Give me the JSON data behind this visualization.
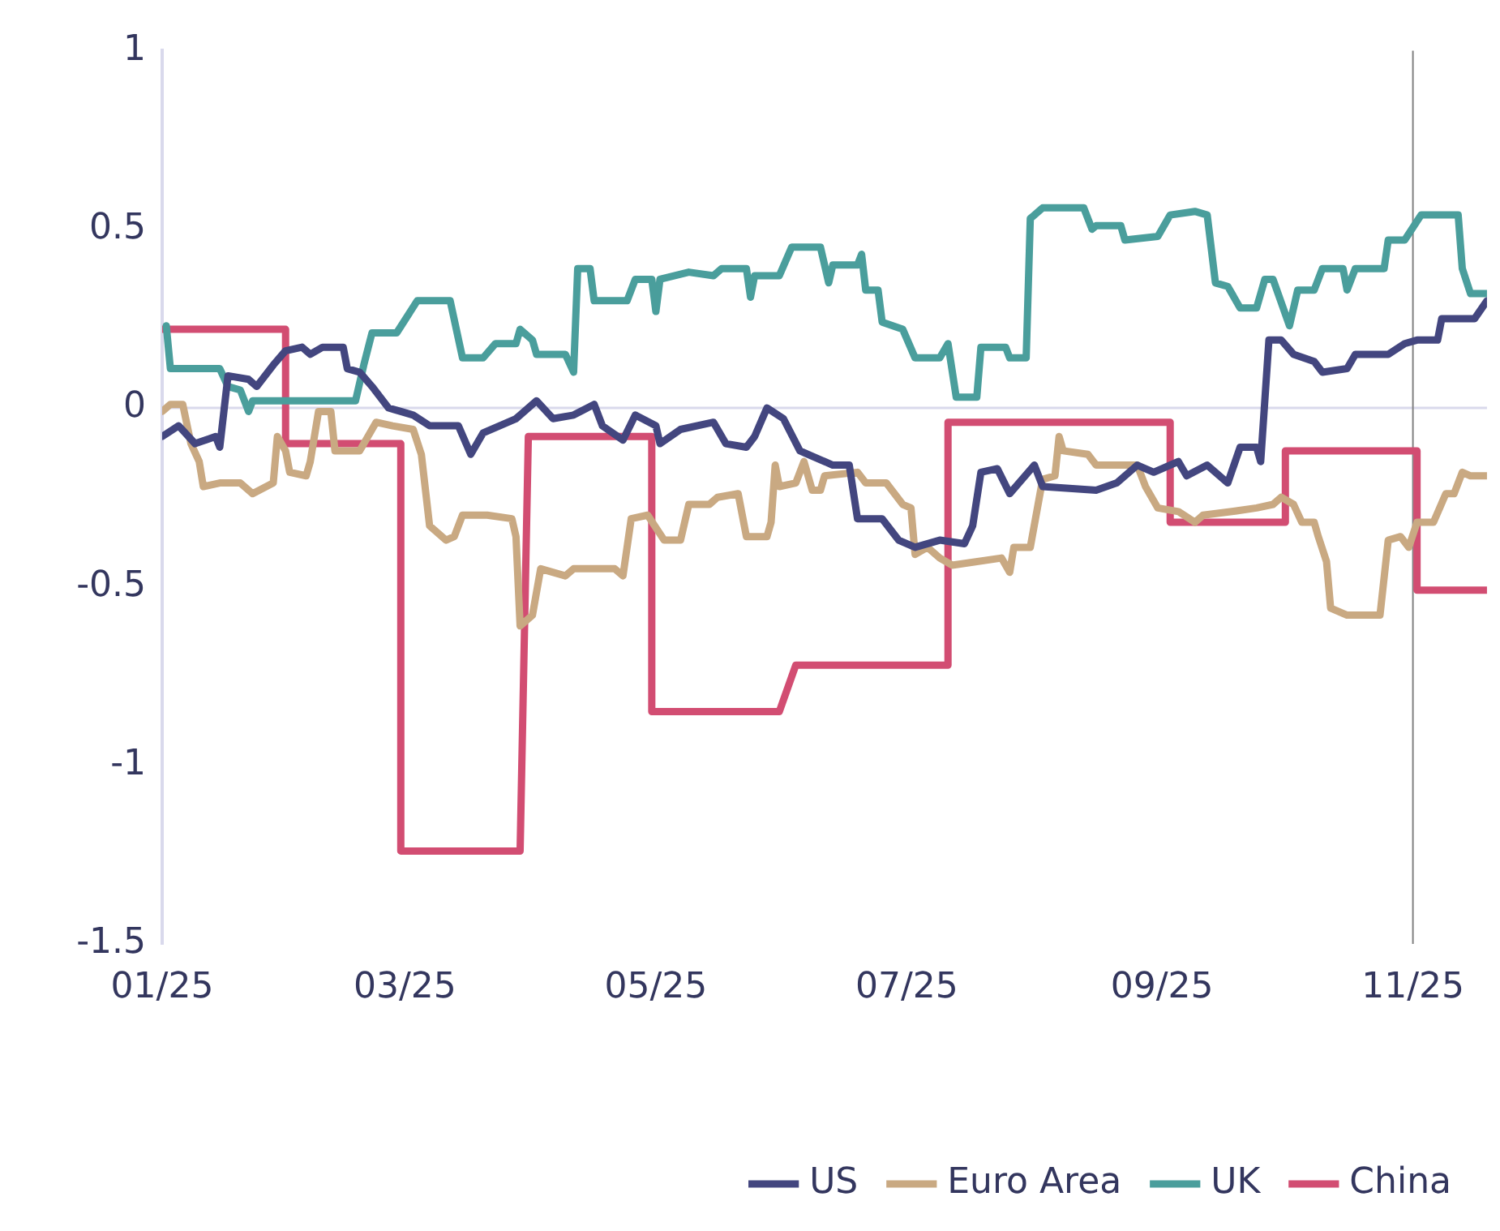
{
  "chart_data": {
    "type": "line",
    "xlim": [
      "2025-01-01",
      "2025-11-19"
    ],
    "xticks": [
      {
        "value": "2025-01-01",
        "label": "01/25"
      },
      {
        "value": "2025-03-01",
        "label": "03/25"
      },
      {
        "value": "2025-05-01",
        "label": "05/25"
      },
      {
        "value": "2025-07-01",
        "label": "07/25"
      },
      {
        "value": "2025-09-01",
        "label": "09/25"
      },
      {
        "value": "2025-11-01",
        "label": "11/25"
      }
    ],
    "ylim": [
      -1.5,
      1
    ],
    "yticks": [
      -1.5,
      -1,
      -0.5,
      0,
      0.5,
      1
    ],
    "grid": false,
    "legend": "bottom",
    "marker": "none",
    "line_style": "solid",
    "ref_lines": [
      {
        "axis": "y",
        "value": 0,
        "color": "#d9d9ec"
      },
      {
        "axis": "x",
        "value": "2025-11-01",
        "color": "#808080"
      }
    ],
    "series": [
      {
        "name": "US",
        "color": "#43467f",
        "x": [
          "2025-01-01",
          "2025-01-05",
          "2025-01-09",
          "2025-01-14",
          "2025-01-15",
          "2025-01-17",
          "2025-01-22",
          "2025-01-24",
          "2025-01-28",
          "2025-01-31",
          "2025-02-04",
          "2025-02-06",
          "2025-02-09",
          "2025-02-14",
          "2025-02-15",
          "2025-02-18",
          "2025-02-21",
          "2025-02-25",
          "2025-02-28",
          "2025-03-03",
          "2025-03-07",
          "2025-03-14",
          "2025-03-17",
          "2025-03-20",
          "2025-03-28",
          "2025-04-02",
          "2025-04-06",
          "2025-04-11",
          "2025-04-16",
          "2025-04-18",
          "2025-04-23",
          "2025-04-26",
          "2025-05-01",
          "2025-05-02",
          "2025-05-07",
          "2025-05-15",
          "2025-05-18",
          "2025-05-23",
          "2025-05-25",
          "2025-05-28",
          "2025-06-01",
          "2025-06-05",
          "2025-06-07",
          "2025-06-13",
          "2025-06-17",
          "2025-06-19",
          "2025-06-25",
          "2025-06-29",
          "2025-07-03",
          "2025-07-09",
          "2025-07-15",
          "2025-07-17",
          "2025-07-19",
          "2025-07-23",
          "2025-07-26",
          "2025-08-01",
          "2025-08-03",
          "2025-08-16",
          "2025-08-21",
          "2025-08-26",
          "2025-08-30",
          "2025-09-05",
          "2025-09-07",
          "2025-09-12",
          "2025-09-17",
          "2025-09-20",
          "2025-09-24",
          "2025-09-25",
          "2025-09-27",
          "2025-09-30",
          "2025-10-03",
          "2025-10-08",
          "2025-10-10",
          "2025-10-16",
          "2025-10-18",
          "2025-10-26",
          "2025-10-30",
          "2025-11-02",
          "2025-11-07",
          "2025-11-08",
          "2025-11-16",
          "2025-11-19"
        ],
        "values": [
          -0.08,
          -0.05,
          -0.1,
          -0.08,
          -0.11,
          0.09,
          0.08,
          0.06,
          0.12,
          0.16,
          0.17,
          0.15,
          0.17,
          0.17,
          0.11,
          0.1,
          0.06,
          0,
          -0.01,
          -0.02,
          -0.05,
          -0.05,
          -0.13,
          -0.07,
          -0.03,
          0.02,
          -0.03,
          -0.02,
          0.01,
          -0.05,
          -0.09,
          -0.02,
          -0.05,
          -0.1,
          -0.06,
          -0.04,
          -0.1,
          -0.11,
          -0.08,
          0,
          -0.03,
          -0.12,
          -0.13,
          -0.16,
          -0.16,
          -0.31,
          -0.31,
          -0.37,
          -0.39,
          -0.37,
          -0.38,
          -0.33,
          -0.18,
          -0.17,
          -0.24,
          -0.16,
          -0.22,
          -0.23,
          -0.21,
          -0.16,
          -0.18,
          -0.15,
          -0.19,
          -0.16,
          -0.21,
          -0.11,
          -0.11,
          -0.15,
          0.19,
          0.19,
          0.15,
          0.13,
          0.1,
          0.11,
          0.15,
          0.15,
          0.18,
          0.19,
          0.19,
          0.25,
          0.25,
          0.3
        ]
      },
      {
        "name": "Euro Area",
        "color": "#c9a982",
        "x": [
          "2025-01-01",
          "2025-01-03",
          "2025-01-06",
          "2025-01-08",
          "2025-01-10",
          "2025-01-11",
          "2025-01-15",
          "2025-01-20",
          "2025-01-23",
          "2025-01-28",
          "2025-01-29",
          "2025-01-31",
          "2025-02-01",
          "2025-02-05",
          "2025-02-06",
          "2025-02-08",
          "2025-02-11",
          "2025-02-12",
          "2025-02-18",
          "2025-02-22",
          "2025-02-26",
          "2025-03-03",
          "2025-03-05",
          "2025-03-07",
          "2025-03-11",
          "2025-03-13",
          "2025-03-15",
          "2025-03-21",
          "2025-03-27",
          "2025-03-28",
          "2025-03-29",
          "2025-04-01",
          "2025-04-03",
          "2025-04-09",
          "2025-04-11",
          "2025-04-21",
          "2025-04-23",
          "2025-04-25",
          "2025-04-29",
          "2025-05-03",
          "2025-05-07",
          "2025-05-09",
          "2025-05-14",
          "2025-05-16",
          "2025-05-21",
          "2025-05-23",
          "2025-05-28",
          "2025-05-29",
          "2025-05-30",
          "2025-05-31",
          "2025-06-04",
          "2025-06-06",
          "2025-06-08",
          "2025-06-10",
          "2025-06-11",
          "2025-06-19",
          "2025-06-21",
          "2025-06-26",
          "2025-06-30",
          "2025-07-02",
          "2025-07-03",
          "2025-07-06",
          "2025-07-09",
          "2025-07-12",
          "2025-07-24",
          "2025-07-26",
          "2025-07-27",
          "2025-07-31",
          "2025-08-03",
          "2025-08-06",
          "2025-08-07",
          "2025-08-08",
          "2025-08-14",
          "2025-08-16",
          "2025-08-26",
          "2025-08-28",
          "2025-08-31",
          "2025-09-05",
          "2025-09-09",
          "2025-09-11",
          "2025-09-18",
          "2025-09-24",
          "2025-09-28",
          "2025-09-30",
          "2025-10-03",
          "2025-10-05",
          "2025-10-08",
          "2025-10-09",
          "2025-10-11",
          "2025-10-12",
          "2025-10-16",
          "2025-10-24",
          "2025-10-26",
          "2025-10-29",
          "2025-10-31",
          "2025-11-02",
          "2025-11-06",
          "2025-11-09",
          "2025-11-11",
          "2025-11-13",
          "2025-11-15",
          "2025-11-19"
        ],
        "values": [
          -0.01,
          0.01,
          0.01,
          -0.1,
          -0.15,
          -0.22,
          -0.21,
          -0.21,
          -0.24,
          -0.21,
          -0.08,
          -0.12,
          -0.18,
          -0.19,
          -0.15,
          -0.01,
          -0.01,
          -0.12,
          -0.12,
          -0.04,
          -0.05,
          -0.06,
          -0.13,
          -0.33,
          -0.37,
          -0.36,
          -0.3,
          -0.3,
          -0.31,
          -0.36,
          -0.61,
          -0.58,
          -0.45,
          -0.47,
          -0.45,
          -0.45,
          -0.47,
          -0.31,
          -0.3,
          -0.37,
          -0.37,
          -0.27,
          -0.27,
          -0.25,
          -0.24,
          -0.36,
          -0.36,
          -0.32,
          -0.16,
          -0.22,
          -0.21,
          -0.15,
          -0.23,
          -0.23,
          -0.19,
          -0.18,
          -0.21,
          -0.21,
          -0.27,
          -0.28,
          -0.41,
          -0.39,
          -0.42,
          -0.44,
          -0.42,
          -0.46,
          -0.39,
          -0.39,
          -0.2,
          -0.19,
          -0.08,
          -0.12,
          -0.13,
          -0.16,
          -0.16,
          -0.22,
          -0.28,
          -0.29,
          -0.32,
          -0.3,
          -0.29,
          -0.28,
          -0.27,
          -0.25,
          -0.27,
          -0.32,
          -0.32,
          -0.36,
          -0.43,
          -0.56,
          -0.58,
          -0.58,
          -0.37,
          -0.36,
          -0.39,
          -0.32,
          -0.32,
          -0.24,
          -0.24,
          -0.18,
          -0.19,
          -0.19
        ]
      },
      {
        "name": "UK",
        "color": "#4a9e9c",
        "x": [
          "2025-01-02",
          "2025-01-03",
          "2025-01-15",
          "2025-01-17",
          "2025-01-20",
          "2025-01-22",
          "2025-01-23",
          "2025-02-17",
          "2025-02-19",
          "2025-02-21",
          "2025-02-27",
          "2025-03-04",
          "2025-03-12",
          "2025-03-15",
          "2025-03-20",
          "2025-03-23",
          "2025-03-28",
          "2025-03-29",
          "2025-04-01",
          "2025-04-02",
          "2025-04-09",
          "2025-04-11",
          "2025-04-12",
          "2025-04-15",
          "2025-04-16",
          "2025-04-24",
          "2025-04-26",
          "2025-04-30",
          "2025-05-01",
          "2025-05-02",
          "2025-05-09",
          "2025-05-15",
          "2025-05-17",
          "2025-05-23",
          "2025-05-24",
          "2025-05-25",
          "2025-05-31",
          "2025-06-03",
          "2025-06-10",
          "2025-06-12",
          "2025-06-13",
          "2025-06-19",
          "2025-06-20",
          "2025-06-21",
          "2025-06-24",
          "2025-06-25",
          "2025-06-30",
          "2025-07-03",
          "2025-07-09",
          "2025-07-11",
          "2025-07-13",
          "2025-07-18",
          "2025-07-19",
          "2025-07-25",
          "2025-07-26",
          "2025-07-30",
          "2025-07-31",
          "2025-08-03",
          "2025-08-13",
          "2025-08-15",
          "2025-08-16",
          "2025-08-22",
          "2025-08-23",
          "2025-08-31",
          "2025-09-03",
          "2025-09-09",
          "2025-09-12",
          "2025-09-14",
          "2025-09-17",
          "2025-09-20",
          "2025-09-24",
          "2025-09-26",
          "2025-09-28",
          "2025-10-02",
          "2025-10-04",
          "2025-10-08",
          "2025-10-10",
          "2025-10-15",
          "2025-10-16",
          "2025-10-18",
          "2025-10-25",
          "2025-10-26",
          "2025-10-30",
          "2025-11-03",
          "2025-11-12",
          "2025-11-13",
          "2025-11-15",
          "2025-11-19"
        ],
        "values": [
          0.23,
          0.11,
          0.11,
          0.06,
          0.05,
          -0.01,
          0.02,
          0.02,
          0.12,
          0.21,
          0.21,
          0.3,
          0.3,
          0.14,
          0.14,
          0.18,
          0.18,
          0.22,
          0.19,
          0.15,
          0.15,
          0.1,
          0.39,
          0.39,
          0.3,
          0.3,
          0.36,
          0.36,
          0.27,
          0.36,
          0.38,
          0.37,
          0.39,
          0.39,
          0.31,
          0.37,
          0.37,
          0.45,
          0.45,
          0.35,
          0.4,
          0.4,
          0.43,
          0.33,
          0.33,
          0.24,
          0.22,
          0.14,
          0.14,
          0.18,
          0.03,
          0.03,
          0.17,
          0.17,
          0.14,
          0.14,
          0.53,
          0.56,
          0.56,
          0.5,
          0.51,
          0.51,
          0.47,
          0.48,
          0.54,
          0.55,
          0.54,
          0.35,
          0.34,
          0.28,
          0.28,
          0.36,
          0.36,
          0.23,
          0.33,
          0.33,
          0.39,
          0.39,
          0.33,
          0.39,
          0.39,
          0.47,
          0.47,
          0.54,
          0.54,
          0.39,
          0.32,
          0.32
        ]
      },
      {
        "name": "China",
        "color": "#d24d72",
        "x": [
          "2025-01-01",
          "2025-01-31",
          "2025-01-31",
          "2025-02-28",
          "2025-02-28",
          "2025-03-29",
          "2025-03-31",
          "2025-04-30",
          "2025-04-30",
          "2025-05-31",
          "2025-06-04",
          "2025-07-11",
          "2025-07-11",
          "2025-09-03",
          "2025-09-03",
          "2025-10-01",
          "2025-10-01",
          "2025-11-02",
          "2025-11-02",
          "2025-11-19"
        ],
        "values": [
          0.22,
          0.22,
          -0.1,
          -0.1,
          -1.24,
          -1.24,
          -0.08,
          -0.08,
          -0.85,
          -0.85,
          -0.72,
          -0.72,
          -0.04,
          -0.04,
          -0.32,
          -0.32,
          -0.12,
          -0.12,
          -0.51,
          -0.51
        ]
      }
    ]
  }
}
